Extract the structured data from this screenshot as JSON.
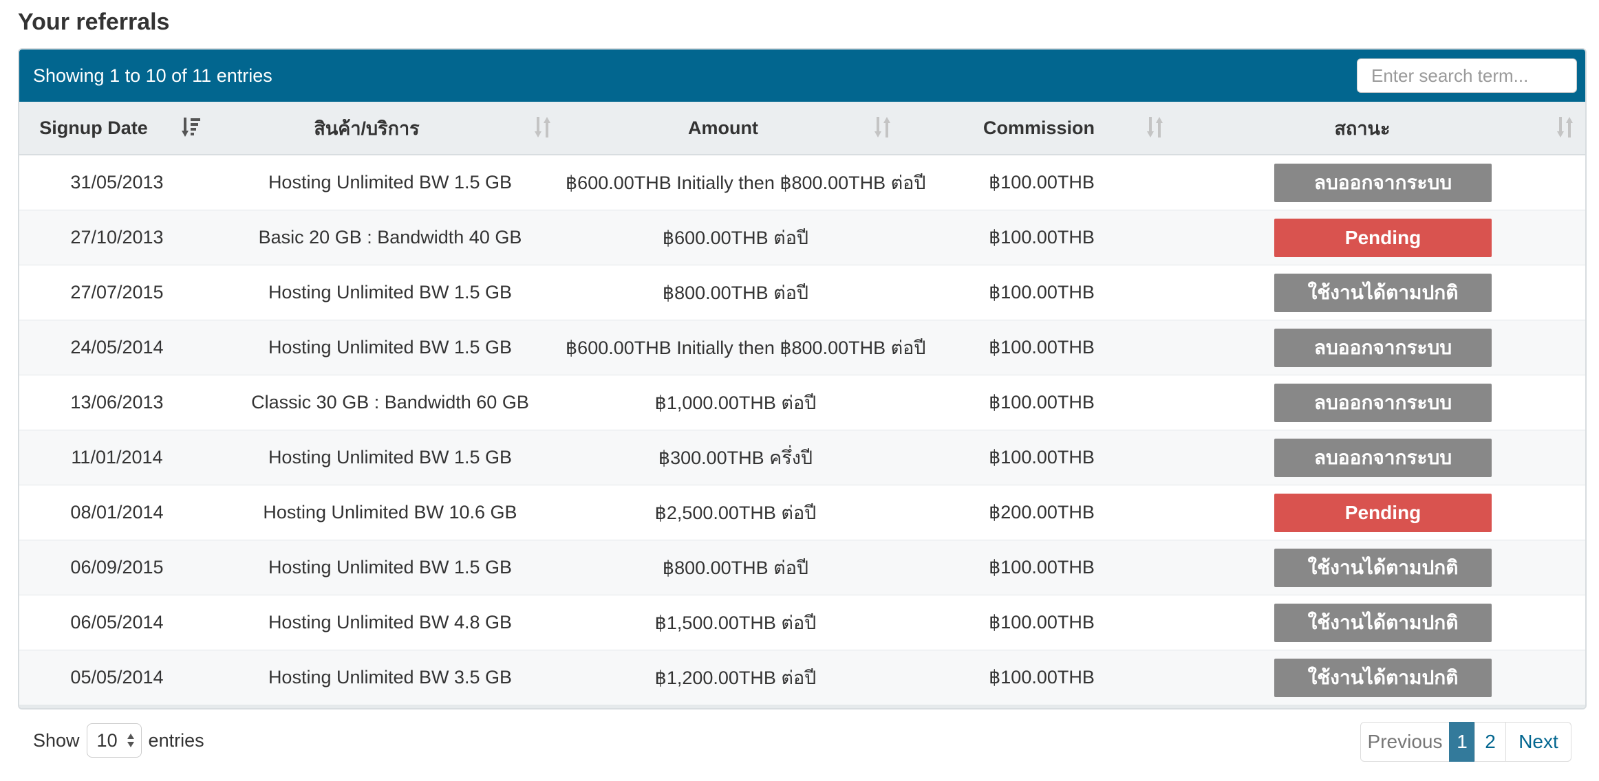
{
  "title": "Your referrals",
  "table_info": "Showing 1 to 10 of 11 entries",
  "search": {
    "placeholder": "Enter search term..."
  },
  "columns": [
    {
      "label": "Signup Date",
      "sort": "sorted-desc"
    },
    {
      "label": "สินค้า/บริการ",
      "sort": "unsorted"
    },
    {
      "label": "Amount",
      "sort": "unsorted"
    },
    {
      "label": "Commission",
      "sort": "unsorted"
    },
    {
      "label": "สถานะ",
      "sort": "unsorted"
    }
  ],
  "rows": [
    {
      "date": "31/05/2013",
      "product": "Hosting Unlimited BW 1.5 GB",
      "amount": "฿600.00THB Initially then ฿800.00THB ต่อปี",
      "commission": "฿100.00THB",
      "status": "ลบออกจากระบบ",
      "status_color": "#888888"
    },
    {
      "date": "27/10/2013",
      "product": "Basic 20 GB : Bandwidth 40 GB",
      "amount": "฿600.00THB ต่อปี",
      "commission": "฿100.00THB",
      "status": "Pending",
      "status_color": "#d9534f"
    },
    {
      "date": "27/07/2015",
      "product": "Hosting Unlimited BW 1.5 GB",
      "amount": "฿800.00THB ต่อปี",
      "commission": "฿100.00THB",
      "status": "ใช้งานได้ตามปกติ",
      "status_color": "#888888"
    },
    {
      "date": "24/05/2014",
      "product": "Hosting Unlimited BW 1.5 GB",
      "amount": "฿600.00THB Initially then ฿800.00THB ต่อปี",
      "commission": "฿100.00THB",
      "status": "ลบออกจากระบบ",
      "status_color": "#888888"
    },
    {
      "date": "13/06/2013",
      "product": "Classic 30 GB : Bandwidth 60 GB",
      "amount": "฿1,000.00THB ต่อปี",
      "commission": "฿100.00THB",
      "status": "ลบออกจากระบบ",
      "status_color": "#888888"
    },
    {
      "date": "11/01/2014",
      "product": "Hosting Unlimited BW 1.5 GB",
      "amount": "฿300.00THB ครึ่งปี",
      "commission": "฿100.00THB",
      "status": "ลบออกจากระบบ",
      "status_color": "#888888"
    },
    {
      "date": "08/01/2014",
      "product": "Hosting Unlimited BW 10.6 GB",
      "amount": "฿2,500.00THB ต่อปี",
      "commission": "฿200.00THB",
      "status": "Pending",
      "status_color": "#d9534f"
    },
    {
      "date": "06/09/2015",
      "product": "Hosting Unlimited BW 1.5 GB",
      "amount": "฿800.00THB ต่อปี",
      "commission": "฿100.00THB",
      "status": "ใช้งานได้ตามปกติ",
      "status_color": "#888888"
    },
    {
      "date": "06/05/2014",
      "product": "Hosting Unlimited BW 4.8 GB",
      "amount": "฿1,500.00THB ต่อปี",
      "commission": "฿100.00THB",
      "status": "ใช้งานได้ตามปกติ",
      "status_color": "#888888"
    },
    {
      "date": "05/05/2014",
      "product": "Hosting Unlimited BW 3.5 GB",
      "amount": "฿1,200.00THB ต่อปี",
      "commission": "฿100.00THB",
      "status": "ใช้งานได้ตามปกติ",
      "status_color": "#888888"
    }
  ],
  "length_menu": {
    "show_label": "Show",
    "value": "10",
    "entries_label": "entries"
  },
  "pagination": {
    "previous": "Previous",
    "pages": [
      "1",
      "2"
    ],
    "current": "1",
    "next": "Next"
  },
  "colors": {
    "header_bar": "#02668f",
    "active_page": "#337a9b",
    "status_grey": "#888888",
    "status_red": "#d9534f"
  }
}
